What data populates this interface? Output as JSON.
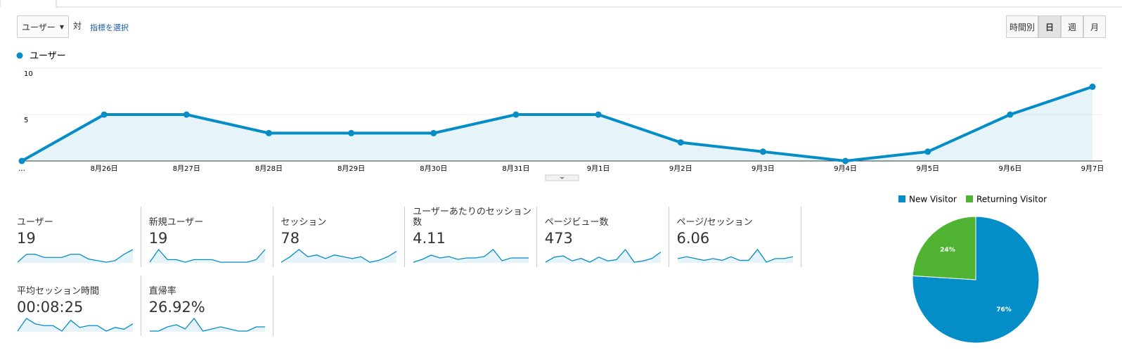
{
  "controls": {
    "metric_select": "ユーザー",
    "vs": "対",
    "select_metric": "指標を選択",
    "buttons": [
      "時間別",
      "日",
      "週",
      "月"
    ]
  },
  "chart_data": [
    {
      "type": "line",
      "categories": [
        "…",
        "8月26日",
        "8月27日",
        "8月28日",
        "8月29日",
        "8月30日",
        "8月31日",
        "9月1日",
        "9月2日",
        "9月3日",
        "9月4日",
        "9月5日",
        "9月6日",
        "9月7日"
      ],
      "series": [
        {
          "name": "ユーザー",
          "color": "#058dc7",
          "values": [
            0,
            5,
            5,
            3,
            3,
            3,
            5,
            5,
            2,
            1,
            0,
            1,
            5,
            8
          ]
        }
      ],
      "ylim": [
        0,
        10
      ],
      "yticks": [
        5,
        10
      ],
      "grid": true
    },
    {
      "type": "pie",
      "categories": [
        "New Visitor",
        "Returning Visitor"
      ],
      "values": [
        76,
        24
      ],
      "value_labels": [
        "76%",
        "24%"
      ],
      "colors": [
        "#058dc7",
        "#50b432"
      ]
    }
  ],
  "metrics": [
    {
      "label": "ユーザー",
      "value": "19",
      "sparkline": [
        0,
        5,
        5,
        3,
        3,
        3,
        5,
        5,
        2,
        1,
        0,
        1,
        5,
        8
      ]
    },
    {
      "label": "新規ユーザー",
      "value": "19",
      "sparkline": [
        0,
        5,
        1,
        1,
        0,
        1,
        1,
        1,
        0,
        0,
        0,
        0,
        1,
        5
      ]
    },
    {
      "label": "セッション",
      "value": "78",
      "sparkline": [
        2,
        5,
        9,
        5,
        6,
        4,
        6,
        5,
        4,
        5,
        2,
        3,
        5,
        8
      ]
    },
    {
      "label": "ユーザーあたりのセッション数",
      "value": "4.11",
      "sparkline": [
        1,
        3,
        6,
        4,
        5,
        3,
        4,
        4,
        5,
        10,
        2,
        4,
        4,
        4
      ]
    },
    {
      "label": "ページビュー数",
      "value": "473",
      "sparkline": [
        3,
        7,
        8,
        4,
        6,
        3,
        7,
        4,
        5,
        13,
        3,
        4,
        6,
        11
      ]
    },
    {
      "label": "ページ/セッション",
      "value": "6.06",
      "sparkline": [
        4,
        5,
        4,
        3,
        4,
        3,
        5,
        3,
        3,
        9,
        2,
        4,
        4,
        5
      ]
    },
    {
      "label": "平均セッション時間",
      "value": "00:08:25",
      "sparkline": [
        1,
        8,
        5,
        4,
        4,
        1,
        7,
        3,
        4,
        4,
        1,
        3,
        2,
        5
      ]
    },
    {
      "label": "直帰率",
      "value": "26.92%",
      "sparkline": [
        1,
        1,
        3,
        4,
        2,
        7,
        1,
        2,
        3,
        2,
        1,
        1,
        3,
        3
      ]
    }
  ]
}
